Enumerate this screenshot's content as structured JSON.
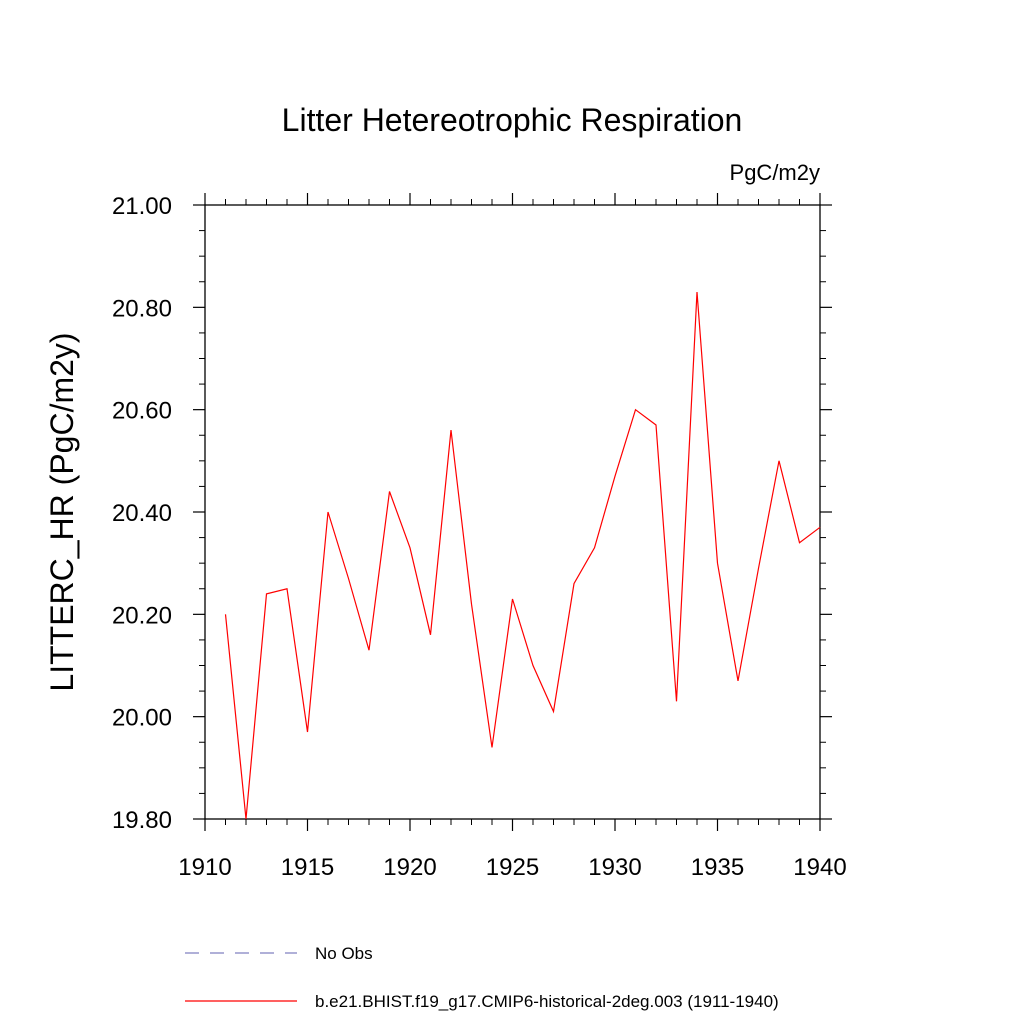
{
  "chart_data": {
    "type": "line",
    "title": "Litter Hetereotrophic Respiration",
    "units_label": "PgC/m2y",
    "ylabel": "LITTERC_HR  (PgC/m2y)",
    "xlabel": "",
    "xlim": [
      1910,
      1940
    ],
    "ylim": [
      19.8,
      21.0
    ],
    "x_ticks": [
      1910,
      1915,
      1920,
      1925,
      1930,
      1935,
      1940
    ],
    "y_ticks": [
      "19.80",
      "20.00",
      "20.20",
      "20.40",
      "20.60",
      "20.80",
      "21.00"
    ],
    "y_tick_values": [
      19.8,
      20.0,
      20.2,
      20.4,
      20.6,
      20.8,
      21.0
    ],
    "grid": false,
    "legend_position": "bottom",
    "legend": [
      {
        "label": "No Obs",
        "style": "dashed",
        "color": "#8080c0"
      },
      {
        "label": "b.e21.BHIST.f19_g17.CMIP6-historical-2deg.003 (1911-1940)",
        "style": "solid",
        "color": "#ff0000"
      }
    ],
    "series": [
      {
        "name": "b.e21.BHIST.f19_g17.CMIP6-historical-2deg.003 (1911-1940)",
        "color": "#ff0000",
        "x": [
          1911,
          1912,
          1913,
          1914,
          1915,
          1916,
          1917,
          1918,
          1919,
          1920,
          1921,
          1922,
          1923,
          1924,
          1925,
          1926,
          1927,
          1928,
          1929,
          1930,
          1931,
          1932,
          1933,
          1934,
          1935,
          1936,
          1937,
          1938,
          1939,
          1940
        ],
        "y": [
          20.2,
          19.8,
          20.24,
          20.25,
          19.97,
          20.4,
          20.27,
          20.13,
          20.44,
          20.33,
          20.16,
          20.56,
          20.22,
          19.94,
          20.23,
          20.1,
          20.01,
          20.26,
          20.33,
          20.47,
          20.6,
          20.57,
          20.03,
          20.83,
          20.3,
          20.07,
          20.29,
          20.5,
          20.34,
          20.37
        ]
      }
    ]
  }
}
